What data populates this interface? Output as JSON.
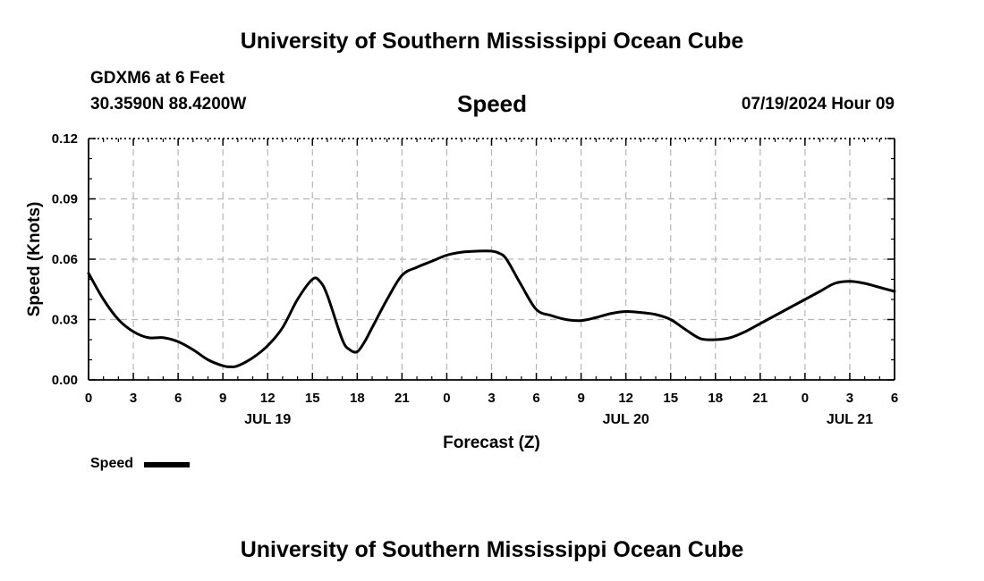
{
  "page": {
    "title_top": "University of Southern Mississippi Ocean Cube",
    "title_bottom": "University of Southern Mississippi Ocean Cube",
    "station": "GDXM6 at 6 Feet",
    "coords": "30.3590N  88.4200W",
    "date": "07/19/2024 Hour 09"
  },
  "legend": {
    "label": "Speed",
    "color": "#000000"
  },
  "chart_data": {
    "type": "line",
    "title": "Speed",
    "xlabel": "Forecast (Z)",
    "ylabel": "Speed (Knots)",
    "ylim": [
      0,
      0.12
    ],
    "yticks": [
      "0.00",
      "0.03",
      "0.06",
      "0.09",
      "0.12"
    ],
    "xlim": [
      0,
      54
    ],
    "xtick_labels": [
      "0",
      "3",
      "6",
      "9",
      "12",
      "15",
      "18",
      "21",
      "0",
      "3",
      "6",
      "9",
      "12",
      "15",
      "18",
      "21",
      "0",
      "3",
      "6"
    ],
    "date_labels": [
      {
        "label": "JUL 19",
        "x": 12
      },
      {
        "label": "JUL 20",
        "x": 36
      },
      {
        "label": "JUL 21",
        "x": 51
      }
    ],
    "grid": true,
    "series": [
      {
        "name": "Speed",
        "x": [
          0,
          1,
          2,
          3,
          4,
          5,
          6,
          7,
          8,
          9,
          9.5,
          10,
          11,
          12,
          13,
          14,
          15,
          15.5,
          16,
          17,
          17.5,
          18,
          18.5,
          19,
          20,
          21,
          22,
          23,
          24,
          25,
          26,
          27,
          27.5,
          28,
          29,
          30,
          31,
          32,
          33,
          34,
          35,
          36,
          37,
          38,
          39,
          40,
          41,
          42,
          43,
          44,
          45,
          46,
          47,
          48,
          49,
          50,
          51,
          52,
          53,
          54
        ],
        "values": [
          0.053,
          0.04,
          0.03,
          0.024,
          0.021,
          0.021,
          0.019,
          0.015,
          0.01,
          0.007,
          0.0065,
          0.007,
          0.011,
          0.017,
          0.026,
          0.04,
          0.05,
          0.049,
          0.042,
          0.02,
          0.015,
          0.014,
          0.019,
          0.026,
          0.04,
          0.052,
          0.056,
          0.059,
          0.062,
          0.0635,
          0.064,
          0.064,
          0.063,
          0.06,
          0.047,
          0.035,
          0.032,
          0.03,
          0.0295,
          0.031,
          0.033,
          0.034,
          0.0335,
          0.0325,
          0.03,
          0.025,
          0.0205,
          0.02,
          0.021,
          0.024,
          0.028,
          0.032,
          0.036,
          0.04,
          0.044,
          0.048,
          0.049,
          0.048,
          0.046,
          0.044
        ]
      }
    ]
  }
}
